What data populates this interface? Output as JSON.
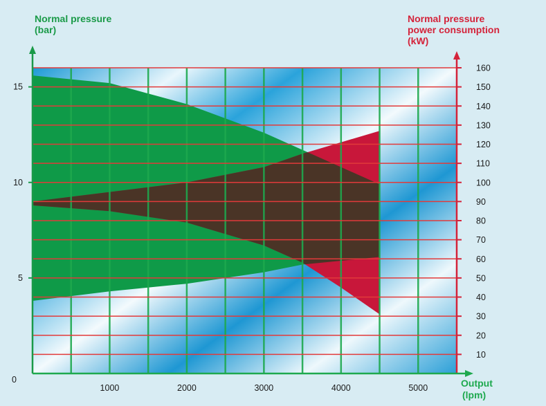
{
  "chart_data": {
    "type": "area",
    "x_axis": {
      "label_line1": "Output",
      "label_line2": "(lpm)",
      "range": [
        0,
        5500
      ],
      "ticks": [
        1000,
        2000,
        3000,
        4000,
        5000
      ],
      "origin_label": "0",
      "grid_step": 500
    },
    "y_left": {
      "label_line1": "Normal pressure",
      "label_line2": "(bar)",
      "range": [
        0,
        16
      ],
      "ticks": [
        5,
        10,
        15
      ]
    },
    "y_right": {
      "label_line1": "Normal pressure",
      "label_line2": "power consumption",
      "label_line3": "(kW)",
      "range": [
        0,
        160
      ],
      "ticks": [
        10,
        20,
        30,
        40,
        50,
        60,
        70,
        80,
        90,
        100,
        110,
        120,
        130,
        140,
        150,
        160
      ]
    },
    "series": [
      {
        "axis": "left",
        "upper": [
          [
            0,
            15.6
          ],
          [
            1000,
            15.2
          ],
          [
            2000,
            14.1
          ],
          [
            3000,
            12.6
          ],
          [
            3500,
            11.7
          ],
          [
            4000,
            10.8
          ],
          [
            4500,
            9.9
          ]
        ],
        "lower": [
          [
            0,
            3.8
          ],
          [
            1000,
            4.3
          ],
          [
            2000,
            4.7
          ],
          [
            3000,
            5.3
          ],
          [
            3500,
            5.7
          ],
          [
            4000,
            5.9
          ],
          [
            4500,
            6.1
          ]
        ]
      },
      {
        "axis": "right",
        "upper": [
          [
            0,
            88
          ],
          [
            1000,
            85
          ],
          [
            2000,
            79
          ],
          [
            3000,
            67
          ],
          [
            3500,
            58
          ],
          [
            4000,
            45
          ],
          [
            4500,
            31
          ]
        ],
        "lower": [
          [
            0,
            90
          ],
          [
            1000,
            95
          ],
          [
            2000,
            100
          ],
          [
            3000,
            108
          ],
          [
            3500,
            115
          ],
          [
            4000,
            121
          ],
          [
            4500,
            127
          ]
        ]
      }
    ],
    "colors": {
      "green": "#0f9a48",
      "red": "#c8173a",
      "overlap": "#4a3426",
      "grid_vertical": "#1ea94e",
      "grid_horizontal": "#e23a3a",
      "left_title": "#1a9a48",
      "right_title": "#d4233a",
      "sky_light": "#f4fbfe",
      "sky_blue": "#1c9ad6"
    },
    "grid": true
  }
}
